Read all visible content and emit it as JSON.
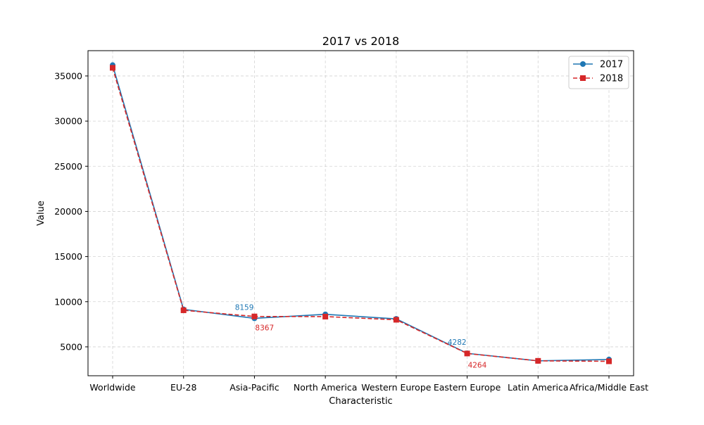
{
  "chart_data": {
    "type": "line",
    "title": "2017 vs 2018",
    "xlabel": "Characteristic",
    "ylabel": "Value",
    "categories": [
      "Worldwide",
      "EU-28",
      "Asia-Pacific",
      "North America",
      "Western Europe",
      "Eastern Europe",
      "Latin America",
      "Africa/Middle East"
    ],
    "ylim": [
      1800,
      37800
    ],
    "yticks": [
      5000,
      10000,
      15000,
      20000,
      25000,
      30000,
      35000
    ],
    "grid": true,
    "legend_position": "top-right",
    "series": [
      {
        "name": "2017",
        "color": "#1f77b4",
        "marker": "circle",
        "line_style": "solid",
        "values": [
          36200,
          9150,
          8159,
          8600,
          8100,
          4282,
          3450,
          3600
        ]
      },
      {
        "name": "2018",
        "color": "#d62728",
        "marker": "square",
        "line_style": "dashed",
        "values": [
          35900,
          9050,
          8367,
          8350,
          8000,
          4264,
          3450,
          3400
        ]
      }
    ],
    "annotations": [
      {
        "series": 0,
        "index": 2,
        "text": "8159",
        "placement": "above-left"
      },
      {
        "series": 1,
        "index": 2,
        "text": "8367",
        "placement": "below-right"
      },
      {
        "series": 0,
        "index": 5,
        "text": "4282",
        "placement": "above-left"
      },
      {
        "series": 1,
        "index": 5,
        "text": "4264",
        "placement": "below-right"
      }
    ]
  }
}
